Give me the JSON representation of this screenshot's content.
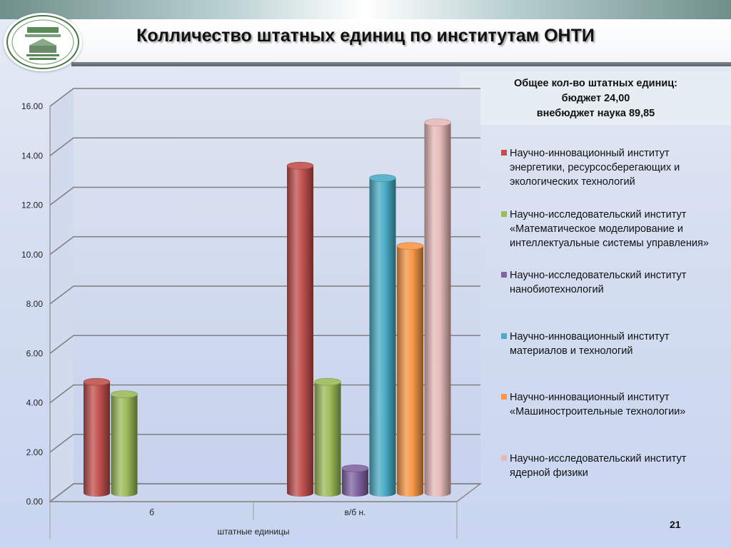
{
  "header": {
    "title": "Колличество штатных единиц по институтам ОНТИ",
    "logo_icon": "university-emblem-icon"
  },
  "summary": {
    "line1": "Общее кол-во штатных единиц:",
    "line2": "бюджет 24,00",
    "line3": "внебюджет наука 89,85"
  },
  "page_number": "21",
  "chart_data": {
    "type": "bar",
    "style": "3d-cylinder",
    "categories": [
      "б",
      "в/б н."
    ],
    "xlabel": "штатные единицы",
    "ylabel": "",
    "ylim": [
      0,
      16
    ],
    "yticks": [
      "0.00",
      "2.00",
      "4.00",
      "6.00",
      "8.00",
      "10.00",
      "12.00",
      "14.00",
      "16.00"
    ],
    "grid": true,
    "legend_position": "right",
    "series": [
      {
        "name": "Научно-инновационный институт энергетики, ресурсосберегающих и экологических технологий",
        "color": "#c0504d",
        "values": [
          4.5,
          13.25
        ]
      },
      {
        "name": "Научно-исследовательский институт «Математическое моделирование и интеллектуальные системы управления»",
        "color": "#9bbb59",
        "values": [
          4.0,
          4.5
        ]
      },
      {
        "name": "Научно-исследовательский институт нанобиотехнологий",
        "color": "#8064a2",
        "values": [
          0,
          1.0
        ]
      },
      {
        "name": "Научно-инновационный институт материалов и технологий",
        "color": "#4bacc6",
        "values": [
          0,
          12.75
        ]
      },
      {
        "name": "Научно-инновационный институт «Машиностроительные технологии»",
        "color": "#f79646",
        "values": [
          0,
          10.0
        ]
      },
      {
        "name": "Научно-исследовательский институт ядерной физики",
        "color": "#e6b9b8",
        "values": [
          0,
          15.0
        ]
      }
    ]
  }
}
